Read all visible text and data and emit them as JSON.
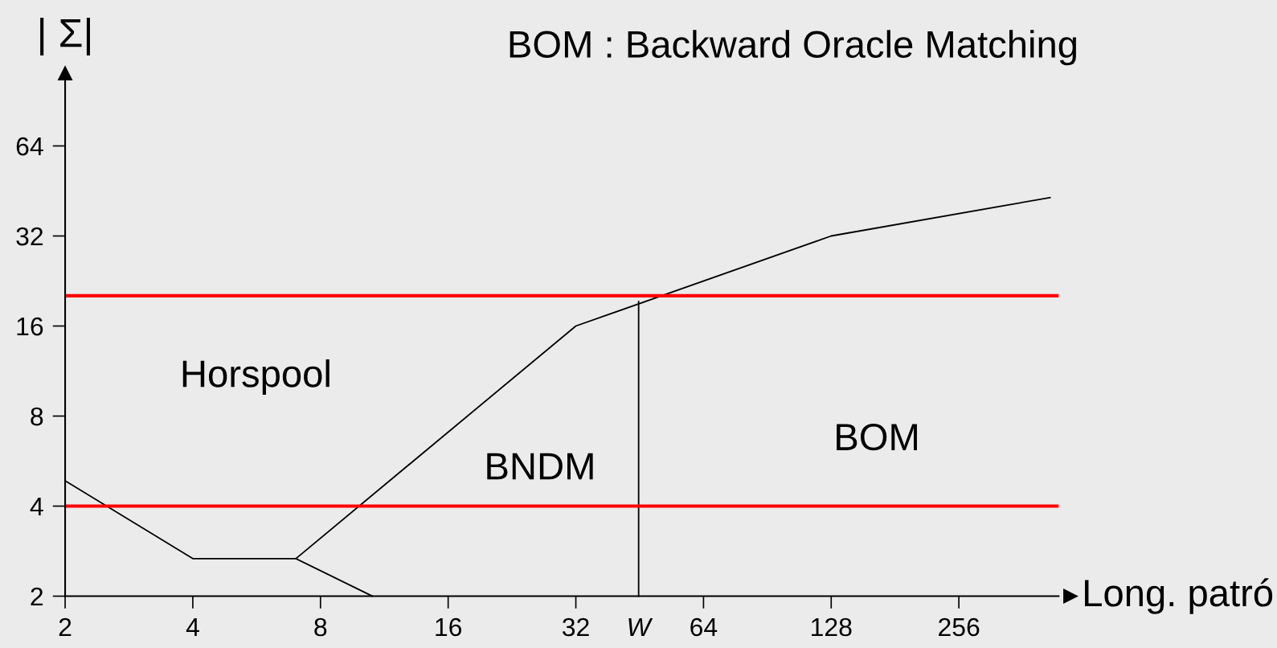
{
  "chart_data": {
    "type": "line",
    "log": "xy",
    "xlabel": "Long. patró",
    "ylabel": "| Σ|",
    "title": "BOM : Backward Oracle Matching",
    "xlim": [
      2,
      440
    ],
    "ylim": [
      2,
      112
    ],
    "xticks": [
      2,
      4,
      8,
      16,
      32,
      {
        "value": 45,
        "label": "W"
      },
      64,
      128,
      256
    ],
    "yticks": [
      2,
      4,
      8,
      16,
      32,
      64
    ],
    "series": [
      {
        "color": "#000000",
        "x": [
          2,
          4,
          7,
          32,
          128,
          420
        ],
        "values": [
          4.86,
          2.67,
          2.67,
          16,
          32,
          43
        ]
      },
      {
        "color": "#000000",
        "x": [
          7,
          10.6
        ],
        "values": [
          2.67,
          2
        ]
      },
      {
        "color": "#000000",
        "x": [
          45,
          45
        ],
        "values": [
          2,
          19.3
        ]
      }
    ],
    "ref_lines": [
      {
        "axis": "y",
        "value": 20.2,
        "label": null,
        "color": "#ff0000"
      },
      {
        "axis": "y",
        "value": 4,
        "label": null,
        "color": "#ff0000"
      }
    ],
    "annotations": [
      "Horspool",
      "BNDM",
      "BOM"
    ],
    "grid": false,
    "legend": false,
    "marker": "none",
    "line_style": "solid"
  }
}
